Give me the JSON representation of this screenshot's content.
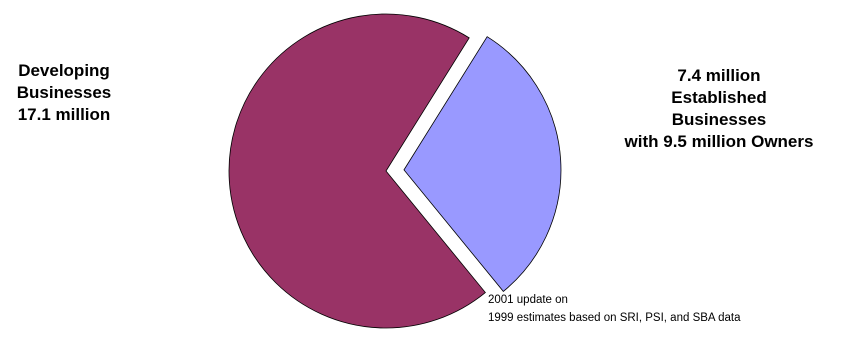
{
  "chart_data": {
    "type": "pie",
    "slices": [
      {
        "name": "Developing Businesses",
        "value": 17.1,
        "color": "#993366",
        "exploded": false
      },
      {
        "name": "Established Businesses",
        "value": 7.4,
        "color": "#9999FF",
        "exploded": true
      }
    ],
    "labels": {
      "developing": [
        "Developing",
        "Businesses",
        "17.1 million"
      ],
      "established": [
        "7.4 million",
        "Established",
        "Businesses",
        "with 9.5 million Owners"
      ]
    },
    "note": [
      "2001  update on",
      "1999 estimates based on SRI, PSI, and SBA data"
    ]
  }
}
